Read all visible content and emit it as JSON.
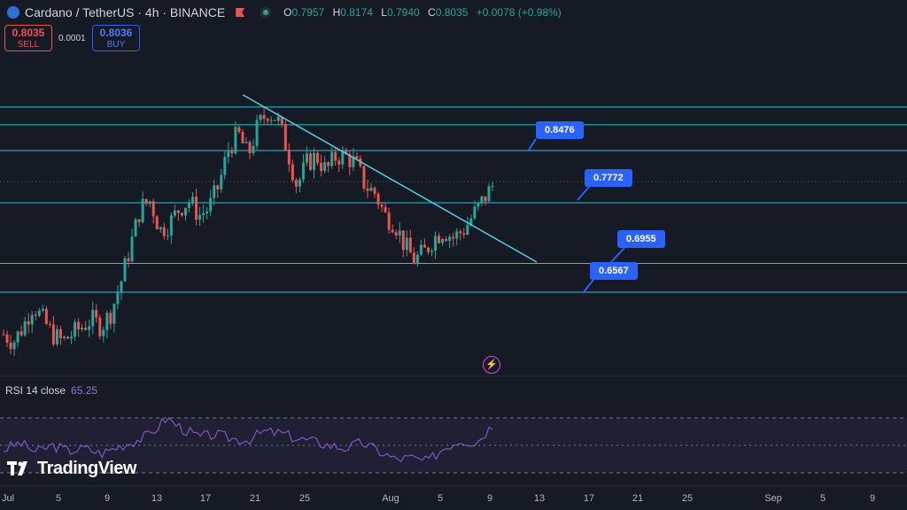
{
  "header": {
    "symbol_title": "Cardano / TetherUS · 4h · BINANCE",
    "ohlc": {
      "open_label": "O",
      "open": "0.7957",
      "high_label": "H",
      "high": "0.8174",
      "low_label": "L",
      "low": "0.7940",
      "close_label": "C",
      "close": "0.8035",
      "change": "+0.0078 (+0.98%)"
    }
  },
  "trade": {
    "sell_price": "0.8035",
    "sell_label": "SELL",
    "spread": "0.0001",
    "buy_price": "0.8036",
    "buy_label": "BUY"
  },
  "callouts": {
    "c1": "0.8476",
    "c2": "0.7772",
    "c3": "0.6955",
    "c4": "0.6567"
  },
  "rsi": {
    "label": "RSI 14 close",
    "value": "65.25"
  },
  "logo": {
    "text": "TradingView"
  },
  "x_axis": [
    "Jul",
    "5",
    "9",
    "13",
    "17",
    "21",
    "25",
    "Aug",
    "5",
    "9",
    "13",
    "17",
    "21",
    "25",
    "Sep",
    "5",
    "9"
  ],
  "colors": {
    "background": "#161a25",
    "up": "#26a69a",
    "down": "#ef5350",
    "hline": "#26c6da",
    "trend": "#4dd0e1",
    "rsi": "#7e57c2",
    "callout": "#2962ff"
  },
  "chart_data": {
    "type": "candlestick",
    "symbol": "ADA/USDT",
    "interval": "4h",
    "horizontal_levels": [
      0.8476,
      0.7772,
      0.6955,
      0.6567
    ],
    "price_path": [
      0.6,
      0.59,
      0.61,
      0.64,
      0.62,
      0.6,
      0.59,
      0.6,
      0.61,
      0.62,
      0.61,
      0.63,
      0.67,
      0.72,
      0.77,
      0.78,
      0.74,
      0.75,
      0.77,
      0.78,
      0.76,
      0.77,
      0.8,
      0.85,
      0.87,
      0.84,
      0.88,
      0.9,
      0.89,
      0.85,
      0.8,
      0.83,
      0.84,
      0.82,
      0.84,
      0.84,
      0.83,
      0.8,
      0.79,
      0.76,
      0.75,
      0.72,
      0.7,
      0.71,
      0.73,
      0.74,
      0.73,
      0.74,
      0.76,
      0.78,
      0.8
    ],
    "rsi_14": [
      47,
      52,
      45,
      50,
      46,
      48,
      44,
      49,
      53,
      58,
      70,
      62,
      56,
      58,
      55,
      54,
      60,
      59,
      55,
      53,
      50,
      48,
      52,
      46,
      40,
      41,
      38,
      48,
      54,
      52,
      65
    ],
    "rsi_levels": [
      70,
      50,
      30
    ],
    "current_rsi": 65.25
  }
}
